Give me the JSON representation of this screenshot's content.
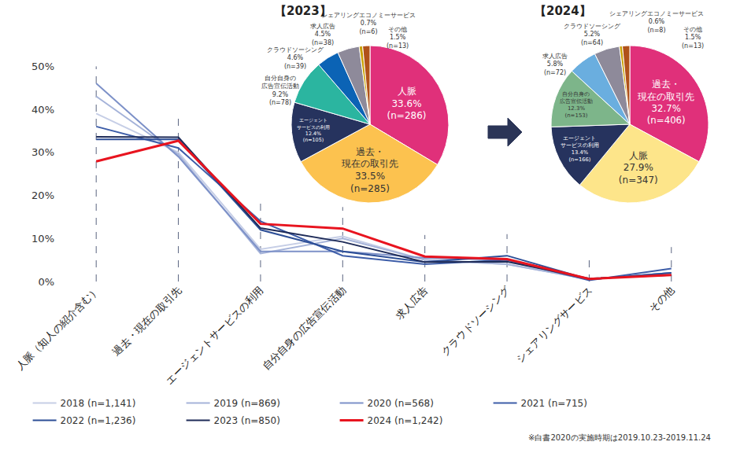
{
  "chart_data": [
    {
      "type": "line",
      "categories": [
        "人脈（知人の紹介含む）",
        "過去・現在の取引先",
        "エージェントサービスの利用",
        "自分自身の広告宣伝活動",
        "求人広告",
        "クラウドソーシング",
        "シェアリングサービス",
        "その他"
      ],
      "series": [
        {
          "name": "2018 (n=1,141)",
          "color": "#c6cee6",
          "values": [
            39,
            30,
            7.5,
            10.5,
            5,
            4,
            0.5,
            2
          ]
        },
        {
          "name": "2019 (n=869)",
          "color": "#a5b3d9",
          "values": [
            43,
            29.5,
            6.5,
            10,
            5,
            4,
            0.5,
            2
          ]
        },
        {
          "name": "2020 (n=568)",
          "color": "#7d91c8",
          "values": [
            46,
            29,
            7,
            7,
            5.5,
            5,
            0.5,
            2
          ]
        },
        {
          "name": "2021 (n=715)",
          "color": "#3d5da8",
          "values": [
            36,
            31,
            14,
            6,
            4,
            5,
            0.3,
            3
          ]
        },
        {
          "name": "2022 (n=1,236)",
          "color": "#2c4e96",
          "values": [
            33,
            33,
            12,
            7,
            4.5,
            6,
            0.5,
            2
          ]
        },
        {
          "name": "2023 (n=850)",
          "color": "#1e2b58",
          "values": [
            33.6,
            33.5,
            12.4,
            9.2,
            4.5,
            4.6,
            0.7,
            1.5
          ]
        },
        {
          "name": "2024 (n=1,242)",
          "color": "#e8141f",
          "values": [
            27.9,
            32.7,
            13.4,
            12.3,
            5.8,
            5.2,
            0.6,
            1.5
          ]
        }
      ],
      "ylim": [
        0,
        50
      ],
      "yticks": [
        {
          "value": 0,
          "label": "0%"
        },
        {
          "value": 10,
          "label": "10%"
        },
        {
          "value": 20,
          "label": "20%"
        },
        {
          "value": 30,
          "label": "30%"
        },
        {
          "value": 40,
          "label": "40%"
        },
        {
          "value": 50,
          "label": "50%"
        }
      ],
      "grid": false,
      "legend": "bottom",
      "annotations": [
        "※白書2020の実施時期は2019.10.23-2019.11.24"
      ]
    },
    {
      "type": "pie",
      "title": "【2023】",
      "categories": [
        "人脈",
        "過去・現在の取引先",
        "エージェントサービスの利用",
        "自分自身の広告宣伝活動",
        "クラウドソーシング",
        "求人広告",
        "シェアリングエコノミーサービス",
        "その他"
      ],
      "values": [
        33.6,
        33.5,
        12.4,
        9.2,
        4.6,
        4.5,
        0.7,
        1.5
      ],
      "value_labels": [
        "33.6%",
        "33.5%",
        "12.4%",
        "9.2%",
        "4.6%",
        "4.5%",
        "0.7%",
        "1.5%"
      ],
      "n_labels": [
        "(n=286)",
        "(n=285)",
        "(n=105)",
        "(n=78)",
        "(n=39)",
        "(n=38)",
        "(n=6)",
        "(n=13)"
      ],
      "colors": [
        "#e0307a",
        "#fcc24f",
        "#26335e",
        "#2bb5a0",
        "#0b63b5",
        "#8e8a9a",
        "#c9a000",
        "#b0521a"
      ],
      "data_labels": true
    },
    {
      "type": "pie",
      "title": "【2024】",
      "categories": [
        "過去・現在の取引先",
        "人脈",
        "エージェントサービスの利用",
        "自分自身の広告宣伝活動",
        "求人広告",
        "クラウドソーシング",
        "シェアリングエコノミーサービス",
        "その他"
      ],
      "values": [
        32.7,
        27.9,
        13.4,
        12.3,
        5.8,
        5.2,
        0.6,
        1.5
      ],
      "value_labels": [
        "32.7%",
        "27.9%",
        "13.4%",
        "12.3%",
        "5.8%",
        "5.2%",
        "0.6%",
        "1.5%"
      ],
      "n_labels": [
        "(n=406)",
        "(n=347)",
        "(n=166)",
        "(n=153)",
        "(n=72)",
        "(n=64)",
        "(n=8)",
        "(n=13)"
      ],
      "colors": [
        "#e0307a",
        "#fde58a",
        "#26335e",
        "#7db58a",
        "#6aaedf",
        "#8e8a9a",
        "#c9a000",
        "#b0521a"
      ],
      "data_labels": true
    }
  ]
}
